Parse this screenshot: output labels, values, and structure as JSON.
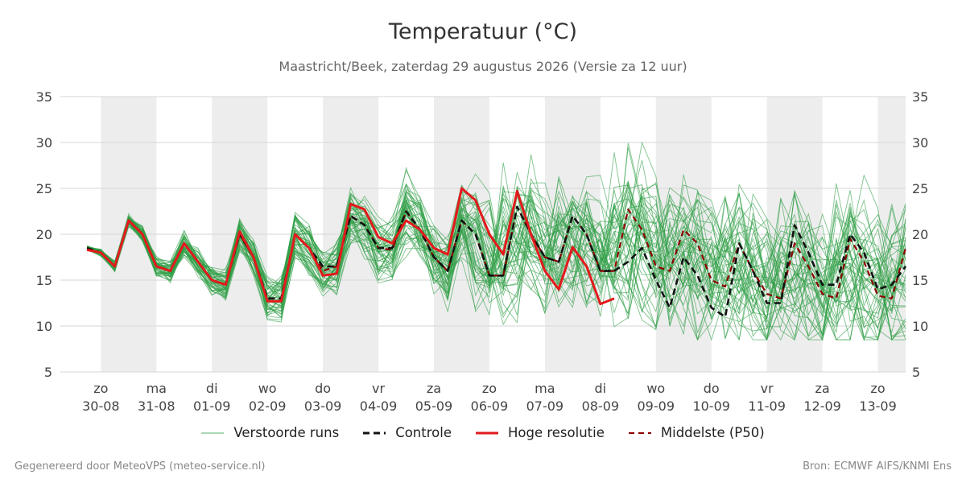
{
  "title": "Temperatuur (°C)",
  "subtitle": "Maastricht/Beek, zaterdag 29 augustus 2026 (Versie za 12 uur)",
  "footer_left": "Gegenereerd door MeteoVPS (meteo-service.nl)",
  "footer_right": "Bron: ECMWF AIFS/KNMI Ens",
  "legend": [
    {
      "label": "Verstoorde runs",
      "color": "#2e9e45",
      "style": "thin"
    },
    {
      "label": "Controle",
      "color": "#111111",
      "style": "dashed"
    },
    {
      "label": "Hoge resolutie",
      "color": "#e31a1c",
      "style": "solid"
    },
    {
      "label": "Middelste (P50)",
      "color": "#8b0000",
      "style": "dashed"
    }
  ],
  "chart_data": {
    "type": "line",
    "title": "Temperatuur (°C)",
    "ylim": [
      5,
      35
    ],
    "yticks": [
      5,
      10,
      15,
      20,
      25,
      30,
      35
    ],
    "xlim": [
      -0.73,
      14.5
    ],
    "grid": true,
    "legend_position": "bottom",
    "x_ticks": [
      {
        "x": 0,
        "day": "zo",
        "date": "30-08"
      },
      {
        "x": 1,
        "day": "ma",
        "date": "31-08"
      },
      {
        "x": 2,
        "day": "di",
        "date": "01-09"
      },
      {
        "x": 3,
        "day": "wo",
        "date": "02-09"
      },
      {
        "x": 4,
        "day": "do",
        "date": "03-09"
      },
      {
        "x": 5,
        "day": "vr",
        "date": "04-09"
      },
      {
        "x": 6,
        "day": "za",
        "date": "05-09"
      },
      {
        "x": 7,
        "day": "zo",
        "date": "06-09"
      },
      {
        "x": 8,
        "day": "ma",
        "date": "07-09"
      },
      {
        "x": 9,
        "day": "di",
        "date": "08-09"
      },
      {
        "x": 10,
        "day": "wo",
        "date": "09-09"
      },
      {
        "x": 11,
        "day": "do",
        "date": "10-09"
      },
      {
        "x": 12,
        "day": "vr",
        "date": "11-09"
      },
      {
        "x": 13,
        "day": "za",
        "date": "12-09"
      },
      {
        "x": 14,
        "day": "zo",
        "date": "13-09"
      }
    ],
    "night_bands": [
      [
        0,
        1
      ],
      [
        2,
        3
      ],
      [
        4,
        5
      ],
      [
        6,
        7
      ],
      [
        8,
        9
      ],
      [
        10,
        11
      ],
      [
        12,
        13
      ],
      [
        14,
        14.5
      ]
    ],
    "x": [
      -0.25,
      0,
      0.25,
      0.5,
      0.75,
      1,
      1.25,
      1.5,
      1.75,
      2,
      2.25,
      2.5,
      2.75,
      3,
      3.25,
      3.5,
      3.75,
      4,
      4.25,
      4.5,
      4.75,
      5,
      5.25,
      5.5,
      5.75,
      6,
      6.25,
      6.5,
      6.75,
      7,
      7.25,
      7.5,
      7.75,
      8,
      8.25,
      8.5,
      8.75,
      9,
      9.25,
      9.5,
      9.75,
      10,
      10.25,
      10.5,
      10.75,
      11,
      11.25,
      11.5,
      11.75,
      12,
      12.25,
      12.5,
      12.75,
      13,
      13.25,
      13.5,
      13.75,
      14,
      14.25,
      14.5
    ],
    "series": [
      {
        "name": "Hoge resolutie",
        "color": "#e31a1c",
        "values": [
          18.3,
          18.0,
          16.5,
          21.5,
          20.0,
          16.5,
          16.0,
          19.0,
          17.0,
          15.0,
          14.5,
          20.3,
          17.5,
          12.7,
          12.7,
          20.0,
          18.5,
          15.5,
          15.7,
          23.3,
          22.7,
          19.7,
          19.0,
          21.5,
          20.5,
          18.5,
          17.8,
          25.0,
          23.7,
          20.0,
          17.8,
          24.7,
          20.0,
          16.0,
          14.0,
          18.6,
          16.5,
          12.4,
          13.0,
          null,
          null,
          null,
          null,
          null,
          null,
          null,
          null,
          null,
          null,
          null,
          null,
          null,
          null,
          null,
          null,
          null,
          null,
          null,
          null,
          null
        ]
      },
      {
        "name": "Controle",
        "color": "#111111",
        "values": [
          18.5,
          18.0,
          16.5,
          21.5,
          20.0,
          16.5,
          16.0,
          19.0,
          17.0,
          15.0,
          14.5,
          20.0,
          17.5,
          13.0,
          13.0,
          20.0,
          18.5,
          16.5,
          16.5,
          22.0,
          21.0,
          18.5,
          18.5,
          22.5,
          20.5,
          17.5,
          16.0,
          21.5,
          20.0,
          15.5,
          15.5,
          23.0,
          20.0,
          17.5,
          17.0,
          22.0,
          20.0,
          16.0,
          16.0,
          17.0,
          18.5,
          15.0,
          12.0,
          17.5,
          15.5,
          12.0,
          11.0,
          19.0,
          16.0,
          12.5,
          12.5,
          21.0,
          18.0,
          14.5,
          14.5,
          20.0,
          18.0,
          14.0,
          14.5,
          16.5
        ]
      },
      {
        "name": "Middelste (P50)",
        "color": "#8b0000",
        "values": [
          18.5,
          18.0,
          16.5,
          21.5,
          20.0,
          16.5,
          16.0,
          19.0,
          17.0,
          15.0,
          14.5,
          20.0,
          17.5,
          13.0,
          13.0,
          20.0,
          18.5,
          16.0,
          16.5,
          22.0,
          21.0,
          18.5,
          18.3,
          22.5,
          20.5,
          17.5,
          16.0,
          21.5,
          20.0,
          15.5,
          15.5,
          23.0,
          20.0,
          17.5,
          17.0,
          22.0,
          20.0,
          16.0,
          16.0,
          22.7,
          20.5,
          16.5,
          16.0,
          20.5,
          19.0,
          15.0,
          14.3,
          19.0,
          16.0,
          13.5,
          13.0,
          19.0,
          16.5,
          13.5,
          13.0,
          19.5,
          17.0,
          13.3,
          13.0,
          18.5
        ]
      }
    ],
    "perturbed_runs_count": 50
  }
}
